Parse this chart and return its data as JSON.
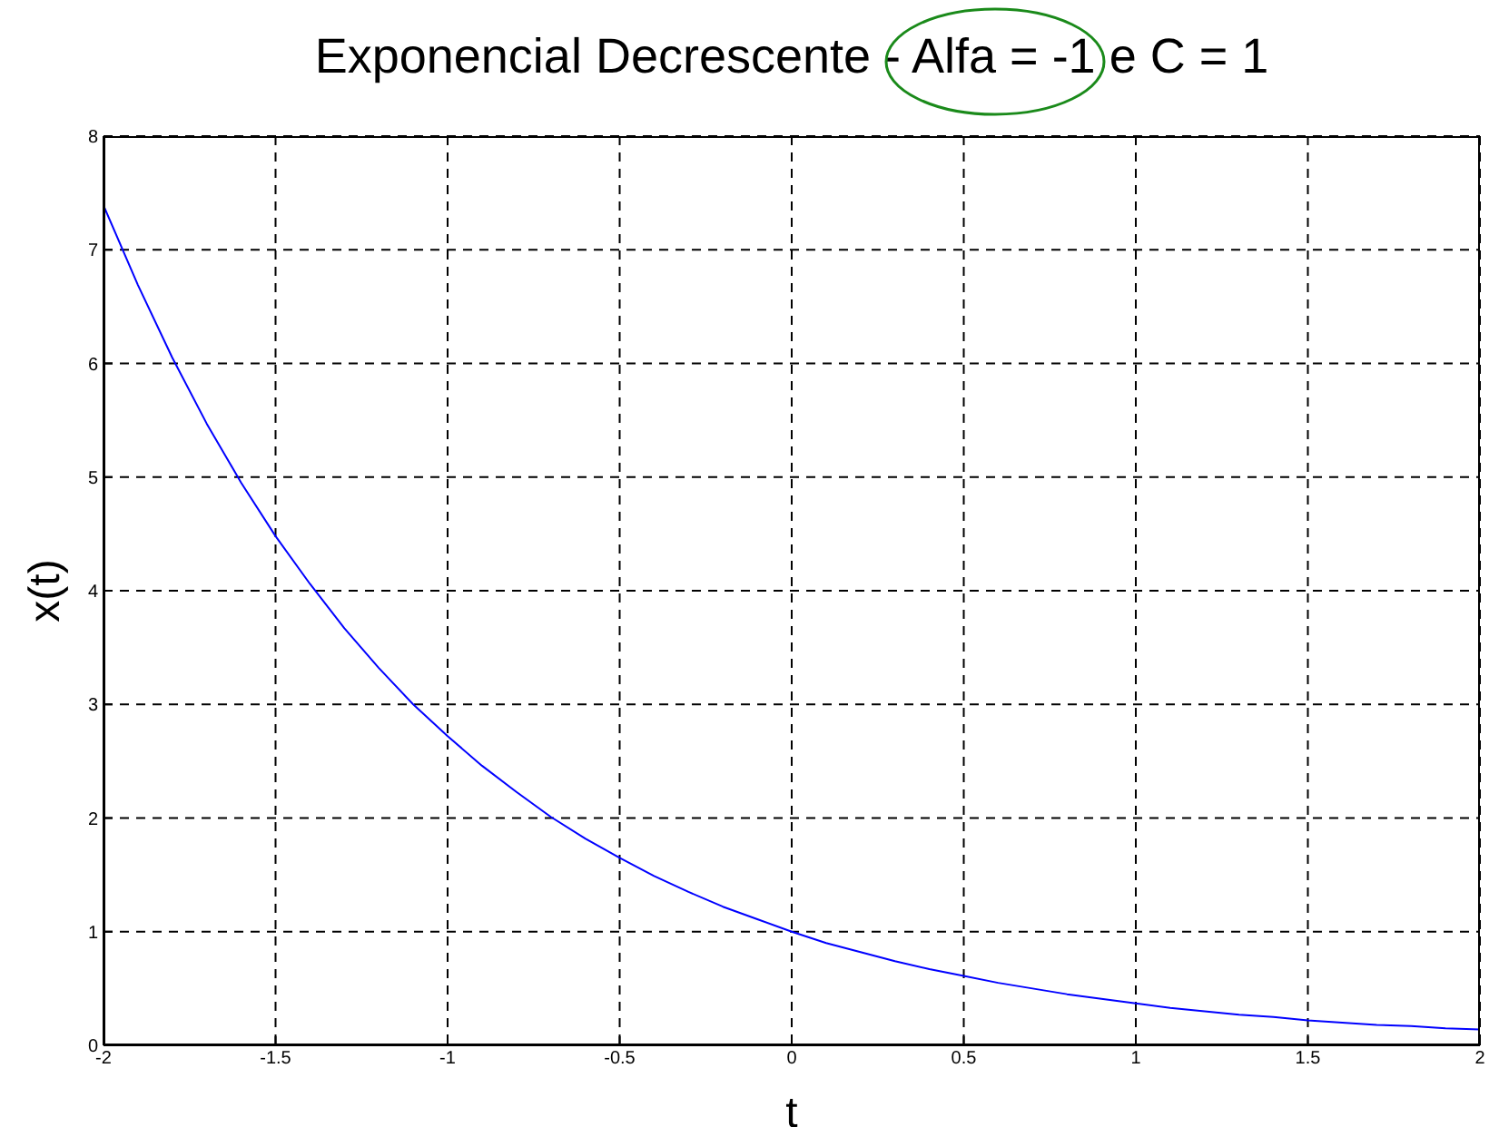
{
  "chart_data": {
    "type": "line",
    "title": "Exponencial Decrescente - Alfa = -1 e C = 1",
    "xlabel": "t",
    "ylabel": "x(t)",
    "x": [
      -2,
      -1.9,
      -1.8,
      -1.7,
      -1.6,
      -1.5,
      -1.4,
      -1.3,
      -1.2,
      -1.1,
      -1,
      -0.9,
      -0.8,
      -0.7,
      -0.6,
      -0.5,
      -0.4,
      -0.3,
      -0.2,
      -0.1,
      0,
      0.1,
      0.2,
      0.3,
      0.4,
      0.5,
      0.6,
      0.7,
      0.8,
      0.9,
      1,
      1.1,
      1.2,
      1.3,
      1.4,
      1.5,
      1.6,
      1.7,
      1.8,
      1.9,
      2
    ],
    "series": [
      {
        "color": "#0000ff",
        "values": [
          7.39,
          6.69,
          6.05,
          5.47,
          4.95,
          4.48,
          4.06,
          3.67,
          3.32,
          3.0,
          2.72,
          2.46,
          2.23,
          2.01,
          1.82,
          1.65,
          1.49,
          1.35,
          1.22,
          1.11,
          1.0,
          0.9,
          0.82,
          0.74,
          0.67,
          0.61,
          0.55,
          0.5,
          0.45,
          0.41,
          0.37,
          0.33,
          0.3,
          0.27,
          0.25,
          0.22,
          0.2,
          0.18,
          0.17,
          0.15,
          0.14
        ]
      }
    ],
    "xlim": [
      -2,
      2
    ],
    "xticks": [
      -2,
      -1.5,
      -1,
      -0.5,
      0,
      0.5,
      1,
      1.5,
      2
    ],
    "ylim": [
      0,
      8
    ],
    "yticks": [
      0,
      1,
      2,
      3,
      4,
      5,
      6,
      7,
      8
    ],
    "grid": true,
    "line_style": "solid",
    "marker": "none"
  }
}
